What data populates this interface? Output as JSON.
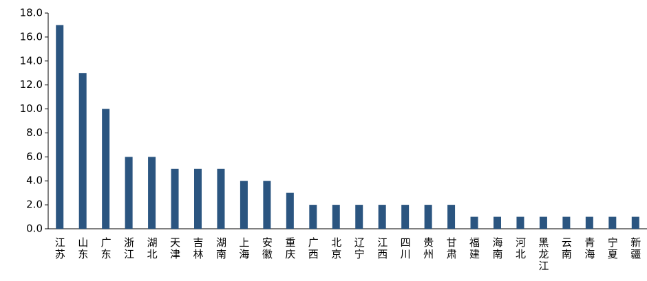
{
  "chart_data": {
    "type": "bar",
    "categories": [
      "江苏",
      "山东",
      "广东",
      "浙江",
      "湖北",
      "天津",
      "吉林",
      "湖南",
      "上海",
      "安徽",
      "重庆",
      "广西",
      "北京",
      "辽宁",
      "江西",
      "四川",
      "贵州",
      "甘肃",
      "福建",
      "海南",
      "河北",
      "黑龙江",
      "云南",
      "青海",
      "宁夏",
      "新疆"
    ],
    "values": [
      17,
      13,
      10,
      6,
      6,
      5,
      5,
      5,
      4,
      4,
      3,
      2,
      2,
      2,
      2,
      2,
      2,
      2,
      1,
      1,
      1,
      1,
      1,
      1,
      1,
      1
    ],
    "color": "#2b5580",
    "ylim": [
      0,
      18
    ],
    "yticks": [
      {
        "value": 0,
        "label": "0.0"
      },
      {
        "value": 2,
        "label": "2.0"
      },
      {
        "value": 4,
        "label": "4.0"
      },
      {
        "value": 6,
        "label": "6.0"
      },
      {
        "value": 8,
        "label": "8.0"
      },
      {
        "value": 10,
        "label": "10.0"
      },
      {
        "value": 12,
        "label": "12.0"
      },
      {
        "value": 14,
        "label": "14.0"
      },
      {
        "value": 16,
        "label": "16.0"
      },
      {
        "value": 18,
        "label": "18.0"
      }
    ],
    "grid": false
  }
}
